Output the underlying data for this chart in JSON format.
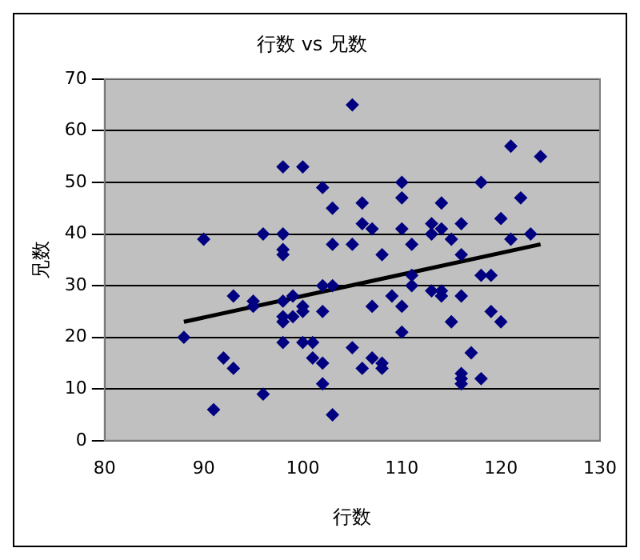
{
  "chart_data": {
    "type": "scatter",
    "title": "行数 vs 兄数",
    "xlabel": "行数",
    "ylabel": "兄数",
    "xlim": [
      80,
      130
    ],
    "xticks": [
      80,
      90,
      100,
      110,
      120,
      130
    ],
    "ylim": [
      0,
      70
    ],
    "yticks": [
      0,
      10,
      20,
      30,
      40,
      50,
      60,
      70
    ],
    "grid": "y",
    "marker": "diamond",
    "series": [
      {
        "color": "#000080",
        "x": [
          105,
          98,
          100,
          102,
          103,
          90,
          96,
          98,
          98,
          98,
          103,
          105,
          102,
          103,
          93,
          95,
          95,
          98,
          99,
          100,
          100,
          98,
          98,
          99,
          102,
          88,
          92,
          93,
          98,
          100,
          101,
          101,
          102,
          102,
          96,
          91,
          103,
          105,
          121,
          124,
          118,
          110,
          110,
          106,
          114,
          122,
          106,
          107,
          110,
          113,
          114,
          116,
          113,
          115,
          120,
          121,
          123,
          108,
          111,
          116,
          111,
          111,
          118,
          119,
          109,
          113,
          114,
          114,
          116,
          107,
          110,
          119,
          115,
          120,
          110,
          106,
          107,
          108,
          108,
          117,
          116,
          116,
          116,
          118
        ],
        "values": [
          65,
          53,
          53,
          49,
          45,
          39,
          40,
          40,
          37,
          36,
          38,
          38,
          30,
          30,
          28,
          27,
          26,
          27,
          28,
          26,
          25,
          24,
          23,
          24,
          25,
          20,
          16,
          14,
          19,
          19,
          19,
          16,
          15,
          11,
          9,
          6,
          5,
          18,
          57,
          55,
          50,
          50,
          47,
          46,
          46,
          47,
          42,
          41,
          41,
          42,
          41,
          42,
          40,
          39,
          43,
          39,
          40,
          36,
          38,
          36,
          32,
          30,
          32,
          32,
          28,
          29,
          29,
          28,
          28,
          26,
          26,
          25,
          23,
          23,
          21,
          14,
          16,
          15,
          14,
          17,
          13,
          12,
          11,
          12
        ]
      },
      {
        "type": "line",
        "color": "#000000",
        "marker": "none",
        "x": [
          88,
          124
        ],
        "values": [
          23,
          38
        ]
      }
    ]
  }
}
